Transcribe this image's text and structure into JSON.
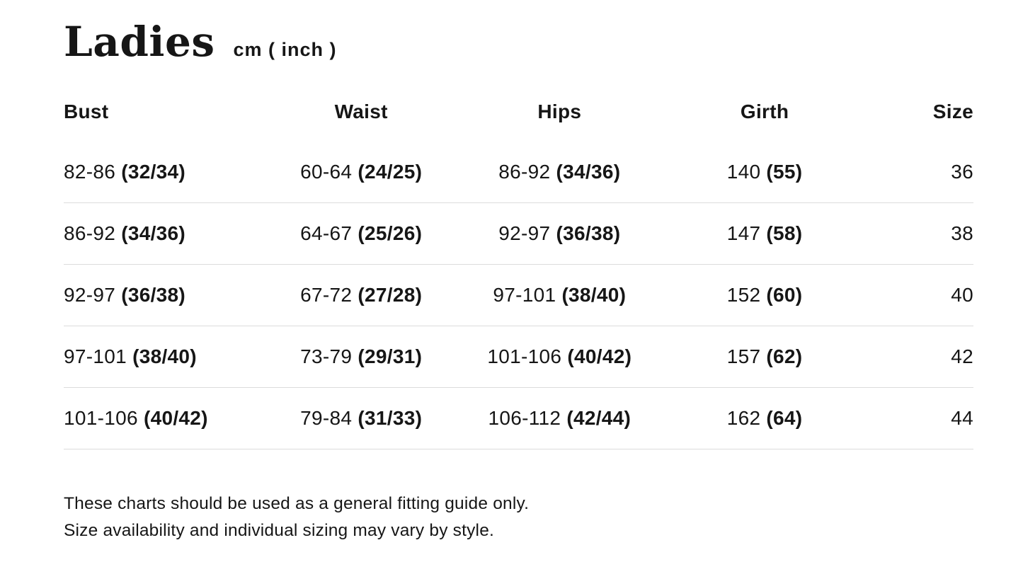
{
  "title": "Ladies",
  "unit_label": "cm ( inch )",
  "table": {
    "columns": [
      "Bust",
      "Waist",
      "Hips",
      "Girth",
      "Size"
    ],
    "rows": [
      {
        "bust": {
          "cm": "82-86",
          "inch": "(32/34)"
        },
        "waist": {
          "cm": "60-64",
          "inch": "(24/25)"
        },
        "hips": {
          "cm": "86-92",
          "inch": "(34/36)"
        },
        "girth": {
          "cm": "140",
          "inch": "(55)"
        },
        "size": "36"
      },
      {
        "bust": {
          "cm": "86-92",
          "inch": "(34/36)"
        },
        "waist": {
          "cm": "64-67",
          "inch": "(25/26)"
        },
        "hips": {
          "cm": "92-97",
          "inch": "(36/38)"
        },
        "girth": {
          "cm": "147",
          "inch": "(58)"
        },
        "size": "38"
      },
      {
        "bust": {
          "cm": "92-97",
          "inch": "(36/38)"
        },
        "waist": {
          "cm": "67-72",
          "inch": "(27/28)"
        },
        "hips": {
          "cm": "97-101",
          "inch": "(38/40)"
        },
        "girth": {
          "cm": "152",
          "inch": "(60)"
        },
        "size": "40"
      },
      {
        "bust": {
          "cm": "97-101",
          "inch": "(38/40)"
        },
        "waist": {
          "cm": "73-79",
          "inch": "(29/31)"
        },
        "hips": {
          "cm": "101-106",
          "inch": "(40/42)"
        },
        "girth": {
          "cm": "157",
          "inch": "(62)"
        },
        "size": "42"
      },
      {
        "bust": {
          "cm": "101-106",
          "inch": "(40/42)"
        },
        "waist": {
          "cm": "79-84",
          "inch": "(31/33)"
        },
        "hips": {
          "cm": "106-112",
          "inch": "(42/44)"
        },
        "girth": {
          "cm": "162",
          "inch": "(64)"
        },
        "size": "44"
      }
    ]
  },
  "footer": {
    "line1": "These charts should be used as a general fitting guide only.",
    "line2": "Size availability and individual sizing may vary by style."
  },
  "colors": {
    "text": "#161616",
    "divider": "#dcdcdc",
    "background": "#ffffff"
  }
}
